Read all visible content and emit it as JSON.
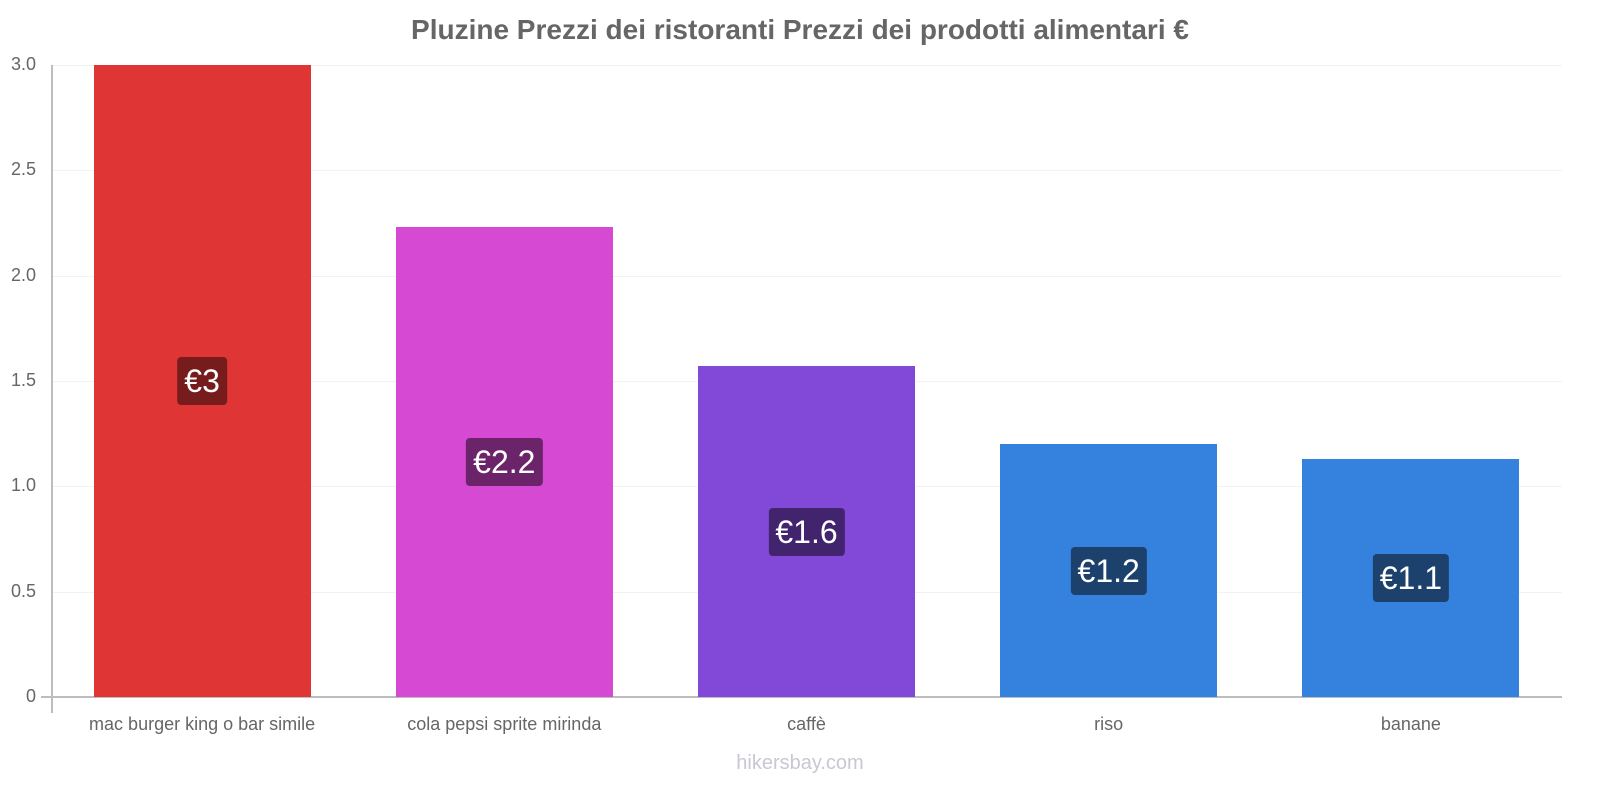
{
  "chart_data": {
    "type": "bar",
    "title": "Pluzine Prezzi dei ristoranti Prezzi dei prodotti alimentari €",
    "xlabel": "",
    "ylabel": "",
    "ylim": [
      0,
      3.0
    ],
    "yticks": [
      "0",
      "0.5",
      "1.0",
      "1.5",
      "2.0",
      "2.5",
      "3.0"
    ],
    "grid": true,
    "legend": "none",
    "categories": [
      "mac burger king o bar simile",
      "cola pepsi sprite mirinda",
      "caffè",
      "riso",
      "banane"
    ],
    "values": [
      3.0,
      2.23,
      1.57,
      1.2,
      1.13
    ],
    "data_labels": [
      "€3",
      "€2.2",
      "€1.6",
      "€1.2",
      "€1.1"
    ],
    "bar_colors": [
      "#e03535",
      "#d649d3",
      "#8249d8",
      "#3582de",
      "#3582de"
    ],
    "label_colors": [
      "#761c1c",
      "#6b246a",
      "#42236e",
      "#1c416c",
      "#1c416c"
    ]
  },
  "footer": "hikersbay.com"
}
